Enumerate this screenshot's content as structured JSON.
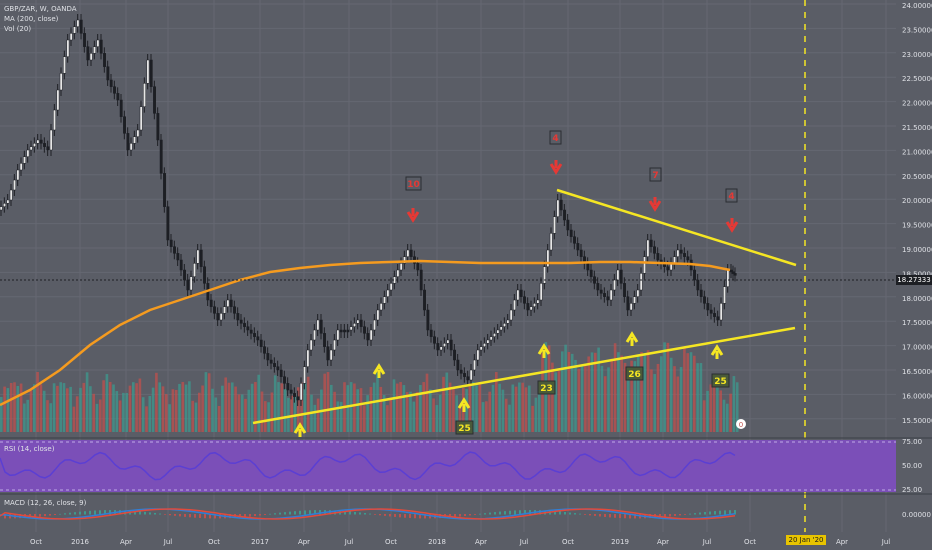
{
  "legend": {
    "symbol": "GBP/ZAR, W, OANDA",
    "ma": "MA (200, close)",
    "vol": "Vol (20)",
    "rsi": "RSI (14, close)",
    "macd": "MACD (12, 26, close, 9)"
  },
  "price_axis": [
    "24.00000",
    "23.50000",
    "23.00000",
    "22.50000",
    "22.00000",
    "21.50000",
    "21.00000",
    "20.50000",
    "20.00000",
    "19.50000",
    "19.00000",
    "18.50000",
    "18.00000",
    "17.50000",
    "17.00000",
    "16.50000",
    "16.00000",
    "15.50000"
  ],
  "current_price": "18.27333",
  "rsi_axis": [
    "75.00",
    "50.00",
    "25.00"
  ],
  "macd_axis": [
    "0.00000"
  ],
  "time_axis": [
    "Oct",
    "2016",
    "Apr",
    "Jul",
    "Oct",
    "2017",
    "Apr",
    "Jul",
    "Oct",
    "2018",
    "Apr",
    "Jul",
    "Oct",
    "2019",
    "Apr",
    "Jul",
    "Oct",
    "Apr",
    "Jul"
  ],
  "date_marker": "20 Jan '20",
  "annotations": {
    "down_counts": [
      "10",
      "4",
      "7",
      "4"
    ],
    "up_counts": [
      "25",
      "23",
      "26",
      "25"
    ],
    "badge": "0"
  },
  "colors": {
    "background": "#5a5d66",
    "bull_volume": "#3e9a8f",
    "bear_volume": "#c0504d",
    "ma_line": "#f59b1f",
    "trendline": "#f5e623",
    "down_arrow": "#e53935",
    "up_arrow": "#f5e623",
    "rsi_line": "#5b3fd3",
    "rsi_fill": "#7b4fb8",
    "macd_line": "#2f7fd8",
    "signal_line": "#e24a3b"
  }
}
